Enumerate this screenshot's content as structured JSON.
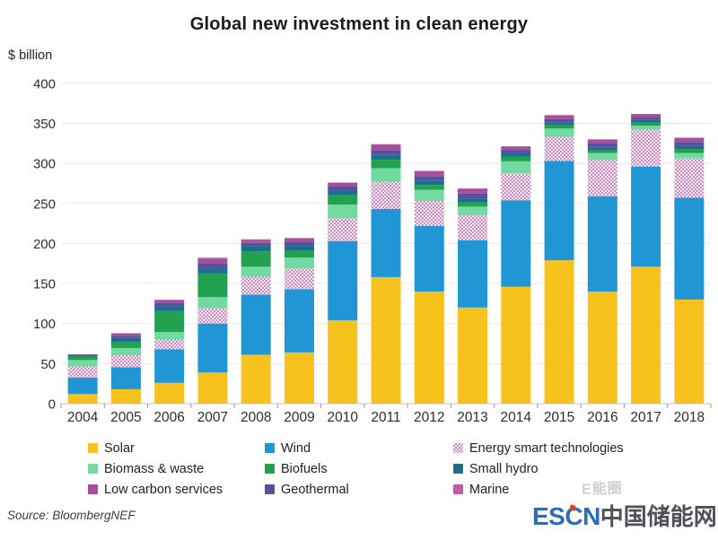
{
  "title": "Global new investment in clean energy",
  "y_axis_unit": "$ billion",
  "source": {
    "text": "Source: BloombergNEF"
  },
  "watermark": {
    "text": "E能圈"
  },
  "logo": {
    "escn": "ESCN",
    "chinese": "中国储能网",
    "escn_color": "#2e6db5",
    "chinese_color": "#50505a",
    "accent_color": "#e23b2e"
  },
  "colors": {
    "grid": "#e8e8e8",
    "axis_line": "#c6c6c6",
    "tick_mark": "#9a9a9a",
    "tick_text": "#2e2e2e",
    "background": "#ffffff"
  },
  "chart_data": {
    "type": "bar",
    "stacked": true,
    "title": "Global new investment in clean energy",
    "xlabel": "",
    "ylabel": "$ billion",
    "ylim": [
      0,
      400
    ],
    "yticks": [
      0,
      50,
      100,
      150,
      200,
      250,
      300,
      350,
      400
    ],
    "grid": true,
    "legend_position": "bottom",
    "categories": [
      "2004",
      "2005",
      "2006",
      "2007",
      "2008",
      "2009",
      "2010",
      "2011",
      "2012",
      "2013",
      "2014",
      "2015",
      "2016",
      "2017",
      "2018"
    ],
    "totals": [
      61.7,
      88.0,
      129.8,
      182.2,
      205.2,
      206.8,
      276.1,
      324.0,
      290.7,
      268.6,
      321.3,
      360.3,
      330.1,
      361.7,
      332.1
    ],
    "series": [
      {
        "name": "Solar",
        "color": "#f7c11e",
        "values": [
          12,
          18,
          26,
          39,
          61,
          64,
          104,
          158,
          140,
          120,
          146,
          179,
          140,
          171,
          130
        ]
      },
      {
        "name": "Wind",
        "color": "#2097d4",
        "values": [
          20.5,
          27.5,
          42,
          61,
          75,
          79,
          99,
          85,
          82,
          84,
          108,
          124,
          119,
          125,
          127
        ]
      },
      {
        "name": "Energy smart technologies",
        "color": "#cb8ec1",
        "pattern": "pink-checker",
        "values": [
          14,
          15,
          12,
          19,
          22.5,
          26,
          28.5,
          34,
          31,
          31,
          33.5,
          30,
          45,
          46,
          49
        ]
      },
      {
        "name": "Biomass & waste",
        "color": "#72d9a0",
        "values": [
          8,
          9,
          9.5,
          14,
          12.5,
          13.5,
          17,
          17,
          14,
          11,
          15,
          10.5,
          9,
          5,
          7
        ]
      },
      {
        "name": "Biofuels",
        "color": "#22a14e",
        "values": [
          3.9,
          7.8,
          26,
          29.5,
          19,
          9,
          12,
          10.5,
          6,
          5,
          6,
          4,
          3,
          4,
          5
        ]
      },
      {
        "name": "Small hydro",
        "color": "#1b6f8e",
        "values": [
          1.6,
          4.6,
          5.5,
          6,
          7,
          5.5,
          5.5,
          6,
          5.5,
          5,
          4.5,
          3.9,
          3.5,
          3,
          3.5
        ]
      },
      {
        "name": "Geothermal",
        "color": "#55519f",
        "values": [
          1.2,
          3,
          4.5,
          7,
          3.7,
          5,
          5,
          6,
          5.7,
          6.3,
          3.8,
          4,
          5.7,
          3.2,
          5.1
        ]
      },
      {
        "name": "Low carbon services",
        "color": "#a84f9b",
        "values": [
          0.4,
          2.8,
          3.5,
          5.5,
          4,
          4.5,
          4.6,
          7,
          6,
          6,
          4,
          4.5,
          4.4,
          4,
          5
        ]
      },
      {
        "name": "Marine",
        "color": "#c05ba4",
        "values": [
          0.1,
          0.3,
          0.8,
          1.2,
          0.5,
          0.3,
          0.5,
          0.5,
          0.5,
          0.3,
          0.5,
          0.4,
          0.5,
          0.5,
          0.5
        ]
      }
    ],
    "legend_order": [
      "Solar",
      "Wind",
      "Energy smart technologies",
      "Biomass & waste",
      "Biofuels",
      "Small hydro",
      "Low carbon services",
      "Geothermal",
      "Marine"
    ]
  }
}
